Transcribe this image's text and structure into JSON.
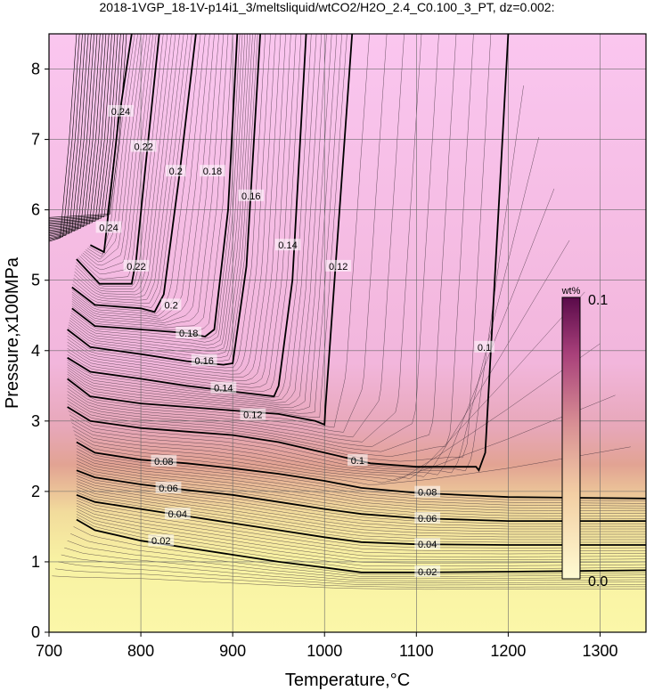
{
  "title": "2018-1VGP_18-1V-p14i1_3/meltsliquid/wtCO2/H2O_2.4_C0.100_3_PT, dz=0.002:",
  "chart_data": {
    "type": "heatmap",
    "xlabel": "Temperature,°C",
    "ylabel": "Pressure,x100MPa",
    "xlim": [
      700,
      1350
    ],
    "ylim": [
      0,
      8.5
    ],
    "xticks": [
      700,
      800,
      900,
      1000,
      1100,
      1200,
      1300
    ],
    "yticks": [
      0,
      1,
      2,
      3,
      4,
      5,
      6,
      7,
      8
    ],
    "grid": true,
    "colorbar": {
      "unit": "wt%",
      "min_label": "0.0",
      "max_label": "0.1",
      "min": 0.0,
      "max": 0.1,
      "colors": [
        "#fefbd2",
        "#f3cfa4",
        "#d88f94",
        "#a8407a",
        "#5a0a4a"
      ]
    },
    "background_colors": {
      "high_pressure": "#f9c5ef",
      "transition": "#e6a0a4",
      "low_pressure": "#f8f4a2"
    },
    "contours": [
      {
        "level": 0.02,
        "label": "0.02",
        "points": [
          [
            730,
            1.6
          ],
          [
            750,
            1.45
          ],
          [
            800,
            1.3
          ],
          [
            850,
            1.2
          ],
          [
            900,
            1.1
          ],
          [
            950,
            1.0
          ],
          [
            1000,
            0.92
          ],
          [
            1040,
            0.85
          ],
          [
            1100,
            0.85
          ],
          [
            1200,
            0.86
          ],
          [
            1350,
            0.88
          ]
        ]
      },
      {
        "level": 0.04,
        "label": "0.04",
        "points": [
          [
            730,
            1.95
          ],
          [
            750,
            1.85
          ],
          [
            800,
            1.75
          ],
          [
            850,
            1.65
          ],
          [
            900,
            1.55
          ],
          [
            950,
            1.45
          ],
          [
            1000,
            1.35
          ],
          [
            1040,
            1.28
          ],
          [
            1100,
            1.25
          ],
          [
            1200,
            1.24
          ],
          [
            1350,
            1.24
          ]
        ]
      },
      {
        "level": 0.06,
        "label": "0.06",
        "points": [
          [
            730,
            2.3
          ],
          [
            750,
            2.2
          ],
          [
            800,
            2.1
          ],
          [
            850,
            2.02
          ],
          [
            900,
            1.95
          ],
          [
            950,
            1.85
          ],
          [
            1000,
            1.75
          ],
          [
            1040,
            1.68
          ],
          [
            1100,
            1.62
          ],
          [
            1200,
            1.58
          ],
          [
            1350,
            1.58
          ]
        ]
      },
      {
        "level": 0.08,
        "label": "0.08",
        "points": [
          [
            730,
            2.7
          ],
          [
            750,
            2.55
          ],
          [
            800,
            2.45
          ],
          [
            850,
            2.4
          ],
          [
            900,
            2.33
          ],
          [
            950,
            2.25
          ],
          [
            1000,
            2.15
          ],
          [
            1040,
            2.05
          ],
          [
            1100,
            1.98
          ],
          [
            1200,
            1.92
          ],
          [
            1350,
            1.9
          ]
        ]
      },
      {
        "level": 0.1,
        "label": "0.1",
        "points": [
          [
            720,
            3.2
          ],
          [
            745,
            3.0
          ],
          [
            800,
            2.9
          ],
          [
            850,
            2.85
          ],
          [
            900,
            2.8
          ],
          [
            950,
            2.7
          ],
          [
            1000,
            2.55
          ],
          [
            1050,
            2.4
          ],
          [
            1100,
            2.35
          ],
          [
            1165,
            2.35
          ],
          [
            1168,
            2.3
          ],
          [
            1175,
            2.55
          ],
          [
            1200,
            8.5
          ]
        ]
      },
      {
        "level": 0.12,
        "label": "0.12",
        "points": [
          [
            720,
            3.6
          ],
          [
            745,
            3.35
          ],
          [
            800,
            3.25
          ],
          [
            850,
            3.2
          ],
          [
            900,
            3.15
          ],
          [
            950,
            3.1
          ],
          [
            990,
            3.0
          ],
          [
            1000,
            2.95
          ],
          [
            1001,
            3.2
          ],
          [
            1030,
            8.5
          ]
        ]
      },
      {
        "level": 0.14,
        "label": "0.14",
        "points": [
          [
            720,
            3.9
          ],
          [
            745,
            3.7
          ],
          [
            800,
            3.6
          ],
          [
            850,
            3.5
          ],
          [
            900,
            3.42
          ],
          [
            945,
            3.35
          ],
          [
            950,
            3.5
          ],
          [
            965,
            5.0
          ],
          [
            980,
            8.5
          ]
        ]
      },
      {
        "level": 0.16,
        "label": "0.16",
        "points": [
          [
            720,
            4.3
          ],
          [
            745,
            4.05
          ],
          [
            800,
            3.95
          ],
          [
            850,
            3.85
          ],
          [
            890,
            3.8
          ],
          [
            900,
            3.82
          ],
          [
            915,
            5.2
          ],
          [
            930,
            8.5
          ]
        ]
      },
      {
        "level": 0.18,
        "label": "0.18",
        "points": [
          [
            725,
            4.6
          ],
          [
            750,
            4.35
          ],
          [
            800,
            4.3
          ],
          [
            850,
            4.25
          ],
          [
            870,
            4.2
          ],
          [
            880,
            4.3
          ],
          [
            895,
            6.0
          ],
          [
            905,
            8.5
          ]
        ]
      },
      {
        "level": 0.2,
        "label": "0.2",
        "points": [
          [
            725,
            4.9
          ],
          [
            750,
            4.65
          ],
          [
            800,
            4.6
          ],
          [
            815,
            4.55
          ],
          [
            825,
            4.8
          ],
          [
            842,
            6.5
          ],
          [
            860,
            8.5
          ]
        ]
      },
      {
        "level": 0.22,
        "label": "0.22",
        "points": [
          [
            730,
            5.3
          ],
          [
            755,
            4.95
          ],
          [
            790,
            4.95
          ],
          [
            795,
            5.3
          ],
          [
            805,
            6.6
          ],
          [
            820,
            8.5
          ]
        ]
      },
      {
        "level": 0.24,
        "label": "0.24",
        "points": [
          [
            745,
            5.5
          ],
          [
            760,
            5.4
          ],
          [
            765,
            6.0
          ],
          [
            775,
            7.2
          ],
          [
            790,
            8.5
          ]
        ]
      }
    ],
    "contour_labels": [
      {
        "text": "0.02",
        "x": 1112,
        "y": 0.86
      },
      {
        "text": "0.02",
        "x": 822,
        "y": 1.3
      },
      {
        "text": "0.04",
        "x": 1112,
        "y": 1.25
      },
      {
        "text": "0.04",
        "x": 840,
        "y": 1.68
      },
      {
        "text": "0.06",
        "x": 1112,
        "y": 1.62
      },
      {
        "text": "0.06",
        "x": 830,
        "y": 2.05
      },
      {
        "text": "0.08",
        "x": 1112,
        "y": 1.99
      },
      {
        "text": "0.08",
        "x": 825,
        "y": 2.43
      },
      {
        "text": "0.1",
        "x": 1036,
        "y": 2.44
      },
      {
        "text": "0.1",
        "x": 1174,
        "y": 4.05
      },
      {
        "text": "0.12",
        "x": 922,
        "y": 3.09
      },
      {
        "text": "0.12",
        "x": 1015,
        "y": 5.2
      },
      {
        "text": "0.14",
        "x": 890,
        "y": 3.47
      },
      {
        "text": "0.14",
        "x": 960,
        "y": 5.5
      },
      {
        "text": "0.16",
        "x": 869,
        "y": 3.86
      },
      {
        "text": "0.16",
        "x": 920,
        "y": 6.2
      },
      {
        "text": "0.18",
        "x": 852,
        "y": 4.25
      },
      {
        "text": "0.18",
        "x": 878,
        "y": 6.55
      },
      {
        "text": "0.2",
        "x": 833,
        "y": 4.65
      },
      {
        "text": "0.2",
        "x": 838,
        "y": 6.55
      },
      {
        "text": "0.22",
        "x": 795,
        "y": 5.2
      },
      {
        "text": "0.22",
        "x": 803,
        "y": 6.9
      },
      {
        "text": "0.24",
        "x": 765,
        "y": 5.75
      },
      {
        "text": "0.24",
        "x": 778,
        "y": 7.4
      }
    ]
  }
}
